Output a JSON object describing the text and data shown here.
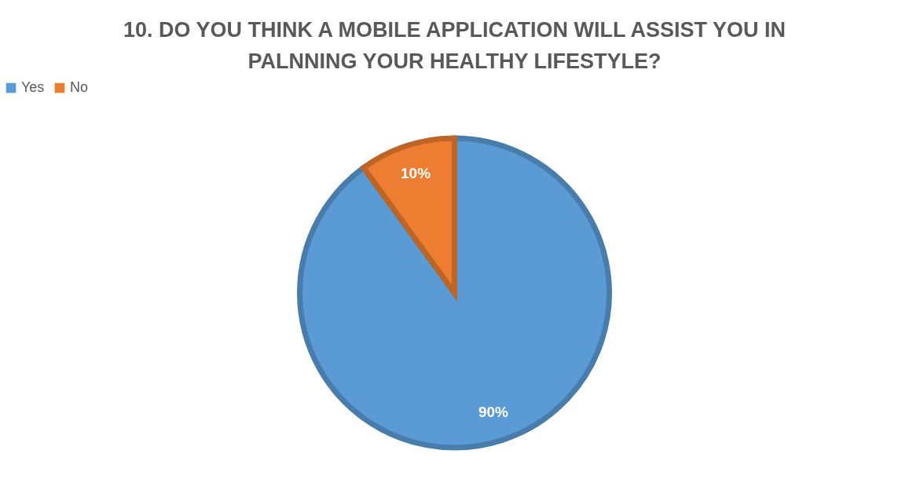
{
  "chart_data": {
    "type": "pie",
    "title": "10. DO YOU THINK A MOBILE APPLICATION WILL ASSIST YOU IN PALNNING YOUR HEALTHY LIFESTYLE?",
    "categories": [
      "Yes",
      "No"
    ],
    "values": [
      90,
      10
    ],
    "colors": [
      "#5b9bd5",
      "#ed7d31"
    ],
    "value_labels": [
      "90%",
      "10%"
    ],
    "legend": "top"
  }
}
